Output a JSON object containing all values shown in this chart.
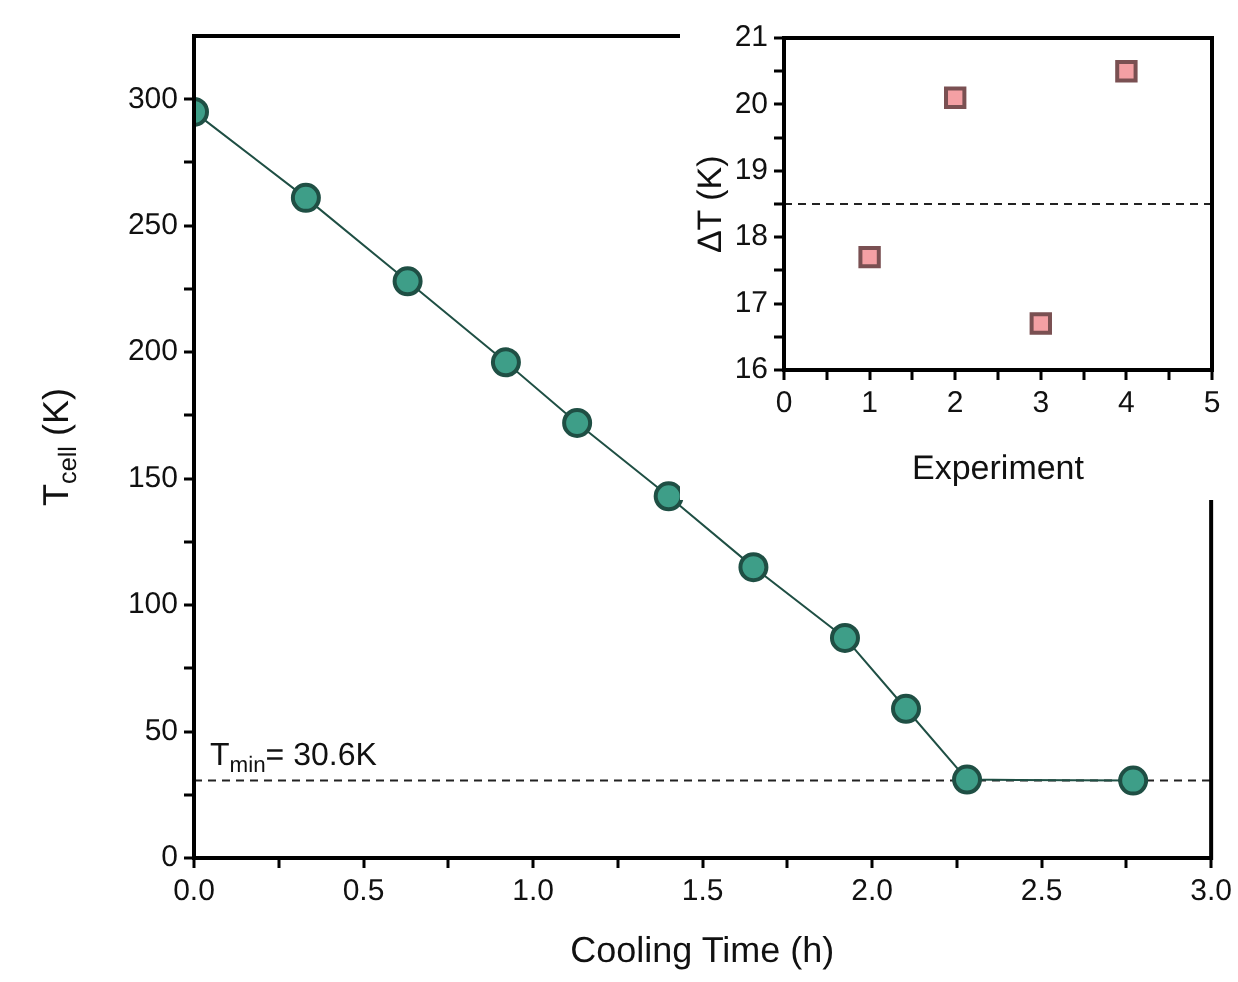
{
  "chart_data": [
    {
      "type": "line",
      "xlabel": "Cooling Time (h)",
      "ylabel": "T$_{cell}$ (K)",
      "marker": "circle",
      "x": [
        0,
        0.33,
        0.63,
        0.92,
        1.13,
        1.4,
        1.65,
        1.92,
        2.1,
        2.28,
        2.77
      ],
      "series": [
        {
          "color": "#3e9e88",
          "values": [
            295,
            261,
            228,
            196,
            172,
            143,
            115,
            87,
            59,
            31,
            30.6
          ]
        }
      ],
      "xlim": [
        0,
        3
      ],
      "ylim": [
        0,
        325
      ],
      "xticks": [
        {
          "value": 0,
          "label": "0.0"
        },
        {
          "value": 0.25,
          "label": null
        },
        0.5,
        {
          "value": 0.75,
          "label": null
        },
        {
          "value": 1,
          "label": "1.0"
        },
        {
          "value": 1.25,
          "label": null
        },
        1.5,
        {
          "value": 1.75,
          "label": null
        },
        {
          "value": 2,
          "label": "2.0"
        },
        {
          "value": 2.25,
          "label": null
        },
        2.5,
        {
          "value": 2.75,
          "label": null
        },
        {
          "value": 3,
          "label": "3.0"
        }
      ],
      "yticks": [
        0,
        {
          "value": 25,
          "label": null
        },
        50,
        {
          "value": 75,
          "label": null
        },
        100,
        {
          "value": 125,
          "label": null
        },
        150,
        {
          "value": 175,
          "label": null
        },
        200,
        {
          "value": 225,
          "label": null
        },
        250,
        {
          "value": 275,
          "label": null
        },
        300
      ],
      "ref_lines": [
        {
          "axis": "y",
          "value": 30.6,
          "label": "T$_{min}$= 30.6K",
          "line_style": "dashed",
          "color": "#222222"
        }
      ]
    },
    {
      "type": "scatter",
      "xlabel": "Experiment",
      "ylabel": "ΔT (K)",
      "marker": "square",
      "x": [
        1,
        2,
        3,
        4
      ],
      "series": [
        {
          "color": "#f4a0a4",
          "values": [
            17.7,
            20.1,
            16.7,
            20.5
          ]
        }
      ],
      "xlim": [
        0,
        5
      ],
      "ylim": [
        16,
        21
      ],
      "xticks": [
        0,
        {
          "value": 0.5,
          "label": null
        },
        1,
        {
          "value": 1.5,
          "label": null
        },
        2,
        {
          "value": 2.5,
          "label": null
        },
        3,
        {
          "value": 3.5,
          "label": null
        },
        4,
        {
          "value": 4.5,
          "label": null
        },
        5
      ],
      "yticks": [
        16,
        {
          "value": 16.5,
          "label": null
        },
        17,
        {
          "value": 17.5,
          "label": null
        },
        18,
        {
          "value": 18.5,
          "label": null
        },
        19,
        {
          "value": 19.5,
          "label": null
        },
        20,
        {
          "value": 20.5,
          "label": null
        },
        21
      ],
      "ref_lines": [
        {
          "axis": "y",
          "value": 18.5,
          "line_style": "dashed",
          "color": "#222222"
        }
      ]
    }
  ]
}
